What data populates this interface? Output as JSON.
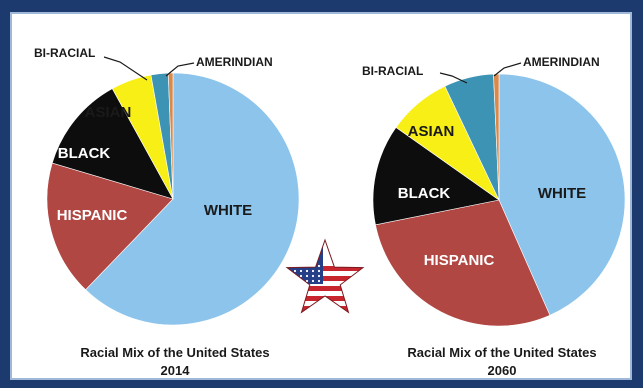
{
  "chart_data": [
    {
      "type": "pie",
      "year": "2014",
      "caption_line1": "Racial Mix of the United States",
      "caption_line2": "2014",
      "start_angle": 0,
      "slices": [
        {
          "label": "WHITE",
          "value": 62.2,
          "color": "#8cc4ec",
          "label_color": "#1a1a1a",
          "callout": false
        },
        {
          "label": "HISPANIC",
          "value": 17.4,
          "color": "#b04743",
          "label_color": "#ffffff",
          "callout": false
        },
        {
          "label": "BLACK",
          "value": 12.4,
          "color": "#0d0d0d",
          "label_color": "#ffffff",
          "callout": false
        },
        {
          "label": "ASIAN",
          "value": 5.2,
          "color": "#f7ef16",
          "label_color": "#1a1a1a",
          "callout": false
        },
        {
          "label": "BI-RACIAL",
          "value": 2.2,
          "color": "#3d93b4",
          "label_color": "#1a1a1a",
          "callout": true
        },
        {
          "label": "AMERINDIAN",
          "value": 0.6,
          "color": "#d98a4b",
          "label_color": "#1a1a1a",
          "callout": true
        }
      ]
    },
    {
      "type": "pie",
      "year": "2060",
      "caption_line1": "Racial Mix of the United States",
      "caption_line2": "2060",
      "start_angle": 0,
      "slices": [
        {
          "label": "WHITE",
          "value": 43.6,
          "color": "#8cc4ec",
          "label_color": "#1a1a1a",
          "callout": false
        },
        {
          "label": "HISPANIC",
          "value": 28.6,
          "color": "#b04743",
          "label_color": "#ffffff",
          "callout": false
        },
        {
          "label": "BLACK",
          "value": 13.0,
          "color": "#0d0d0d",
          "label_color": "#ffffff",
          "callout": false
        },
        {
          "label": "ASIAN",
          "value": 8.2,
          "color": "#f7ef16",
          "label_color": "#1a1a1a",
          "callout": false
        },
        {
          "label": "BI-RACIAL",
          "value": 6.4,
          "color": "#3d93b4",
          "label_color": "#1a1a1a",
          "callout": true
        },
        {
          "label": "AMERINDIAN",
          "value": 0.7,
          "color": "#d98a4b",
          "label_color": "#1a1a1a",
          "callout": true
        }
      ]
    }
  ],
  "decoration": {
    "star_icon": "us-flag-star-icon",
    "star_colors": {
      "red": "#c8262f",
      "white": "#ffffff",
      "blue": "#243f87"
    }
  }
}
